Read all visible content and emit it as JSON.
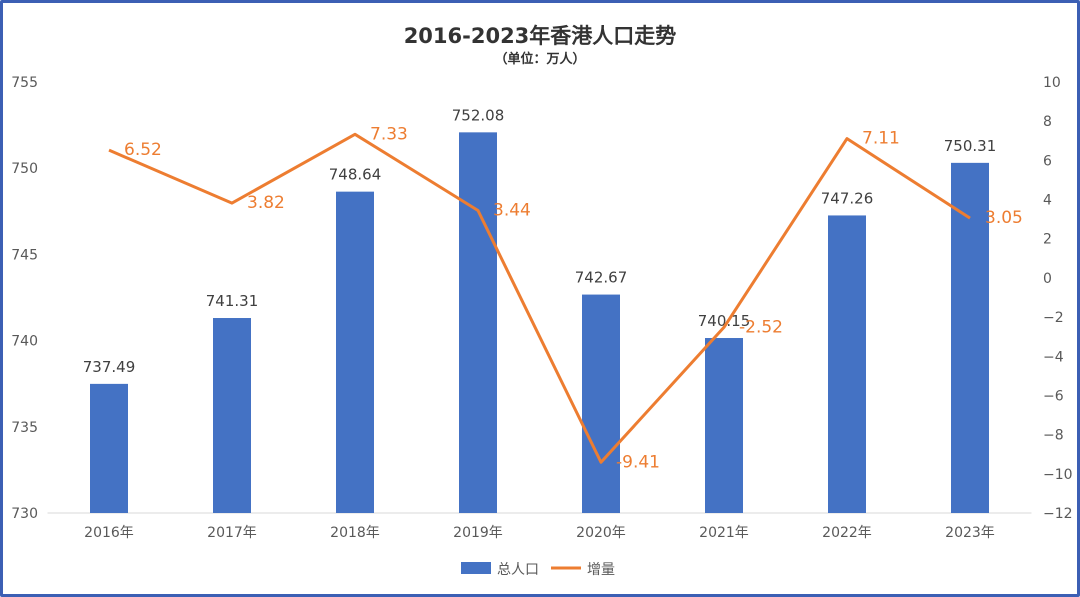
{
  "chart_data": {
    "type": "bar+line",
    "title": "2016-2023年香港人口走势",
    "subtitle": "（单位：万人）",
    "categories": [
      "2016年",
      "2017年",
      "2018年",
      "2019年",
      "2020年",
      "2021年",
      "2022年",
      "2023年"
    ],
    "series": [
      {
        "name": "总人口",
        "type": "bar",
        "axis": "left",
        "color": "#4472c4",
        "values": [
          737.49,
          741.31,
          748.64,
          752.08,
          742.67,
          740.15,
          747.26,
          750.31
        ]
      },
      {
        "name": "增量",
        "type": "line",
        "axis": "right",
        "color": "#ed7d31",
        "values": [
          6.52,
          3.82,
          7.33,
          3.44,
          -9.41,
          -2.52,
          7.11,
          3.05
        ]
      }
    ],
    "y_left": {
      "min": 730,
      "max": 755,
      "ticks": [
        730,
        735,
        740,
        745,
        750,
        755
      ]
    },
    "y_right": {
      "min": -12,
      "max": 10,
      "ticks": [
        -12,
        -10,
        -8,
        -6,
        -4,
        -2,
        0,
        2,
        4,
        6,
        8,
        10
      ]
    },
    "grid": false,
    "legend": "bottom"
  }
}
